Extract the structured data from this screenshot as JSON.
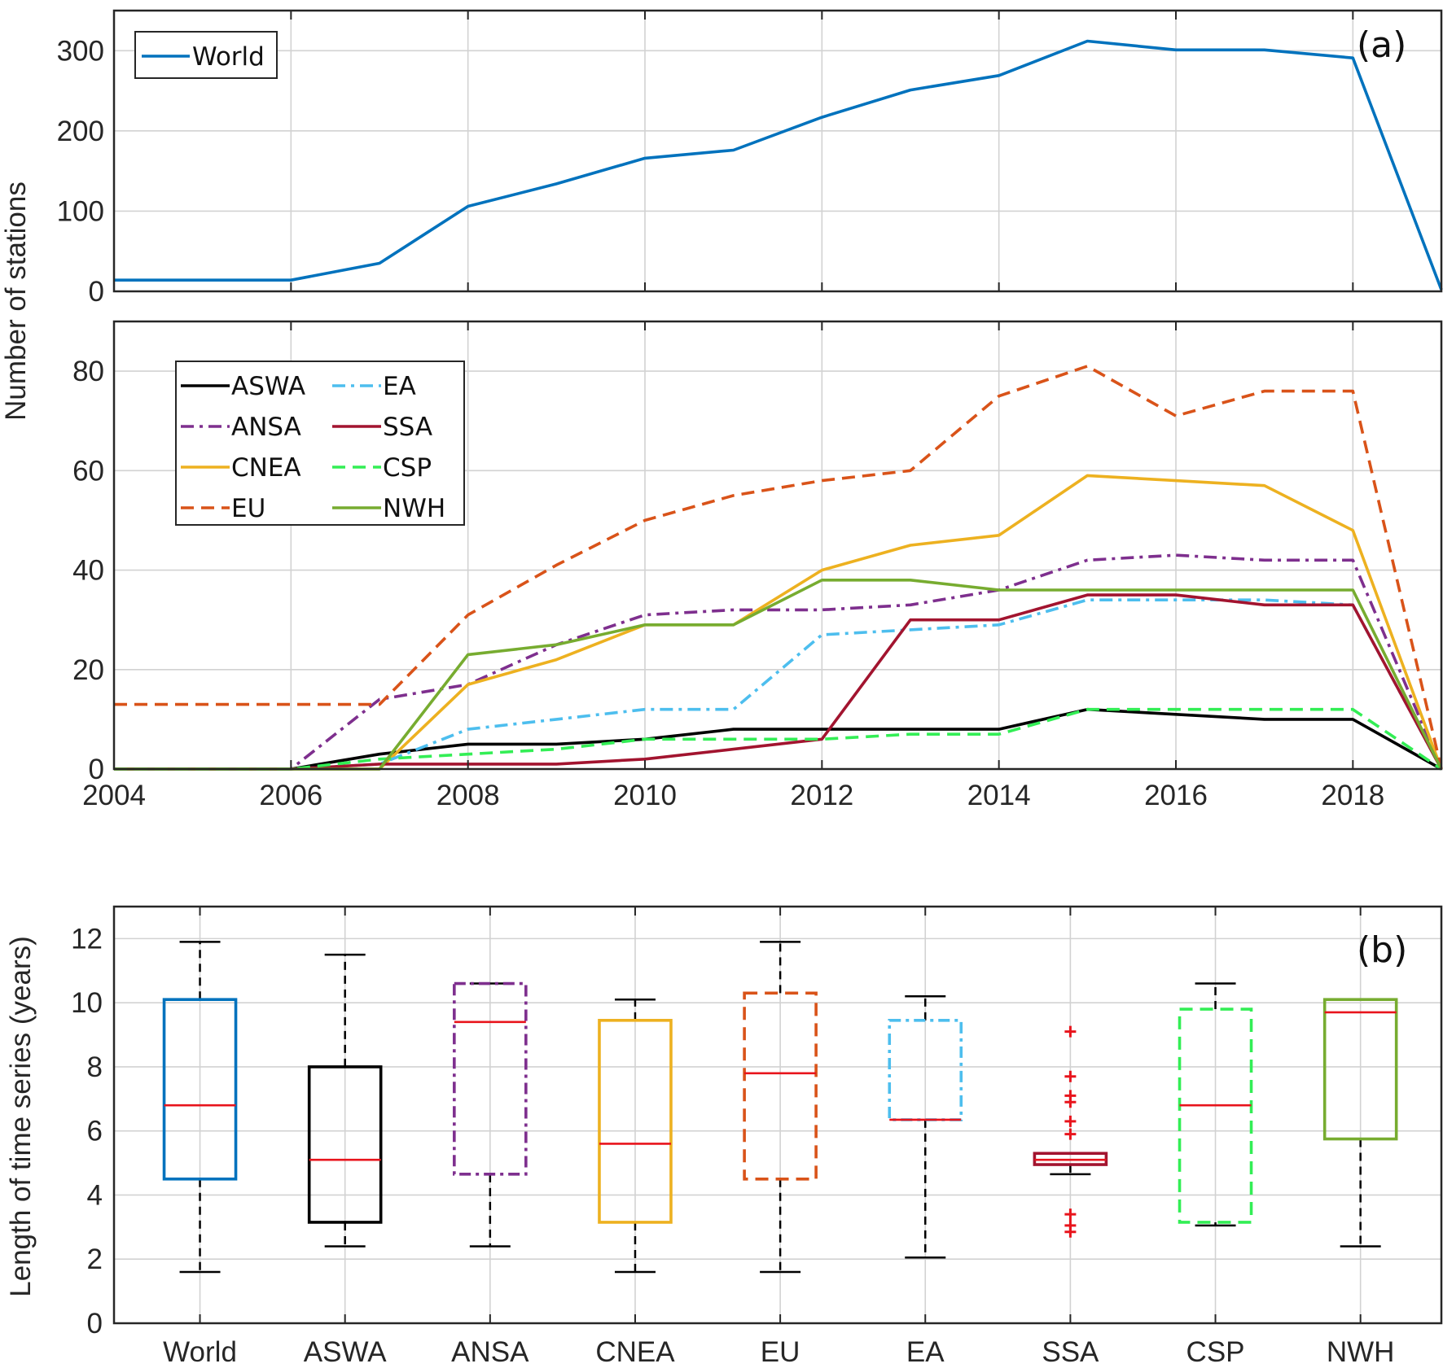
{
  "colors": {
    "World": "#0072bd",
    "ASWA": "#000000",
    "ANSA": "#7e2f8e",
    "CNEA": "#edb120",
    "EU": "#d95319",
    "EA": "#4dbeee",
    "SSA": "#a2142f",
    "CSP": "#33ee55",
    "NWH": "#77ac30",
    "median": "#e8141c",
    "outlier": "#e8141c"
  },
  "figure": {
    "ylabel_a": "Number of stations",
    "ylabel_b": "Length of time series (years)",
    "label_a": "(a)",
    "label_b": "(b)"
  },
  "chart_data": [
    {
      "id": "a-top",
      "type": "line",
      "title": "",
      "legend_position": "top-left",
      "xlim": [
        2004,
        2019
      ],
      "ylim": [
        0,
        350
      ],
      "yticks": [
        0,
        100,
        200,
        300
      ],
      "x": [
        2004,
        2005,
        2006,
        2007,
        2008,
        2009,
        2010,
        2011,
        2012,
        2013,
        2014,
        2015,
        2016,
        2017,
        2018,
        2019
      ],
      "series": [
        {
          "name": "World",
          "style": "solid",
          "values": [
            14,
            14,
            14,
            35,
            106,
            134,
            166,
            176,
            217,
            251,
            269,
            312,
            301,
            301,
            291,
            2
          ]
        }
      ]
    },
    {
      "id": "a-bottom",
      "type": "line",
      "title": "",
      "legend_position": "top-left",
      "xlim": [
        2004,
        2019
      ],
      "ylim": [
        0,
        90
      ],
      "yticks": [
        0,
        20,
        40,
        60,
        80
      ],
      "xticks": [
        2004,
        2006,
        2008,
        2010,
        2012,
        2014,
        2016,
        2018
      ],
      "x": [
        2004,
        2005,
        2006,
        2007,
        2008,
        2009,
        2010,
        2011,
        2012,
        2013,
        2014,
        2015,
        2016,
        2017,
        2018,
        2019
      ],
      "series": [
        {
          "name": "ASWA",
          "style": "solid",
          "values": [
            0,
            0,
            0,
            3,
            5,
            5,
            6,
            8,
            8,
            8,
            8,
            12,
            11,
            10,
            10,
            0
          ]
        },
        {
          "name": "ANSA",
          "style": "dashdot",
          "values": [
            0,
            0,
            0,
            14,
            17,
            25,
            31,
            32,
            32,
            33,
            36,
            42,
            43,
            42,
            42,
            0
          ]
        },
        {
          "name": "CNEA",
          "style": "solid",
          "values": [
            0,
            0,
            0,
            0,
            17,
            22,
            29,
            29,
            40,
            45,
            47,
            59,
            58,
            57,
            48,
            0
          ]
        },
        {
          "name": "EU",
          "style": "dashed",
          "values": [
            13,
            13,
            13,
            13,
            31,
            41,
            50,
            55,
            58,
            60,
            75,
            81,
            71,
            76,
            76,
            0
          ]
        },
        {
          "name": "EA",
          "style": "dashdot",
          "values": [
            0,
            0,
            0,
            1,
            8,
            10,
            12,
            12,
            27,
            28,
            29,
            34,
            34,
            34,
            33,
            0
          ]
        },
        {
          "name": "SSA",
          "style": "solid",
          "values": [
            0,
            0,
            0,
            1,
            1,
            1,
            2,
            4,
            6,
            30,
            30,
            35,
            35,
            33,
            33,
            0
          ]
        },
        {
          "name": "CSP",
          "style": "dashed",
          "values": [
            0,
            0,
            0,
            2,
            3,
            4,
            6,
            6,
            6,
            7,
            7,
            12,
            12,
            12,
            12,
            0
          ]
        },
        {
          "name": "NWH",
          "style": "solid",
          "values": [
            0,
            0,
            0,
            0,
            23,
            25,
            29,
            29,
            38,
            38,
            36,
            36,
            36,
            36,
            36,
            0
          ]
        }
      ]
    },
    {
      "id": "b",
      "type": "box",
      "title": "",
      "ylim": [
        0,
        13
      ],
      "yticks": [
        0,
        2,
        4,
        6,
        8,
        10,
        12
      ],
      "categories": [
        "World",
        "ASWA",
        "ANSA",
        "CNEA",
        "EU",
        "EA",
        "SSA",
        "CSP",
        "NWH"
      ],
      "boxes": [
        {
          "name": "World",
          "style": "solid",
          "whisker_low": 1.6,
          "q1": 4.5,
          "median": 6.8,
          "q3": 10.1,
          "whisker_high": 11.9,
          "outliers": []
        },
        {
          "name": "ASWA",
          "style": "solid",
          "whisker_low": 2.4,
          "q1": 3.15,
          "median": 5.1,
          "q3": 8.0,
          "whisker_high": 11.5,
          "outliers": []
        },
        {
          "name": "ANSA",
          "style": "dashdot",
          "whisker_low": 2.4,
          "q1": 4.65,
          "median": 9.4,
          "q3": 10.6,
          "whisker_high": 10.6,
          "outliers": []
        },
        {
          "name": "CNEA",
          "style": "solid",
          "whisker_low": 1.6,
          "q1": 3.15,
          "median": 5.6,
          "q3": 9.45,
          "whisker_high": 10.1,
          "outliers": []
        },
        {
          "name": "EU",
          "style": "dashed",
          "whisker_low": 1.6,
          "q1": 4.5,
          "median": 7.8,
          "q3": 10.3,
          "whisker_high": 11.9,
          "outliers": []
        },
        {
          "name": "EA",
          "style": "dashdot",
          "whisker_low": 2.05,
          "q1": 6.35,
          "median": 6.35,
          "q3": 9.45,
          "whisker_high": 10.2,
          "outliers": []
        },
        {
          "name": "SSA",
          "style": "solid",
          "whisker_low": 4.65,
          "q1": 4.95,
          "median": 5.1,
          "q3": 5.3,
          "whisker_high": 5.3,
          "outliers": [
            9.1,
            7.7,
            7.1,
            6.9,
            6.3,
            5.9,
            3.4,
            3.05,
            2.85
          ]
        },
        {
          "name": "CSP",
          "style": "dashed",
          "whisker_low": 3.05,
          "q1": 3.15,
          "median": 6.8,
          "q3": 9.8,
          "whisker_high": 10.6,
          "outliers": []
        },
        {
          "name": "NWH",
          "style": "solid",
          "whisker_low": 2.4,
          "q1": 5.75,
          "median": 9.7,
          "q3": 10.1,
          "whisker_high": 10.1,
          "outliers": []
        }
      ]
    }
  ]
}
